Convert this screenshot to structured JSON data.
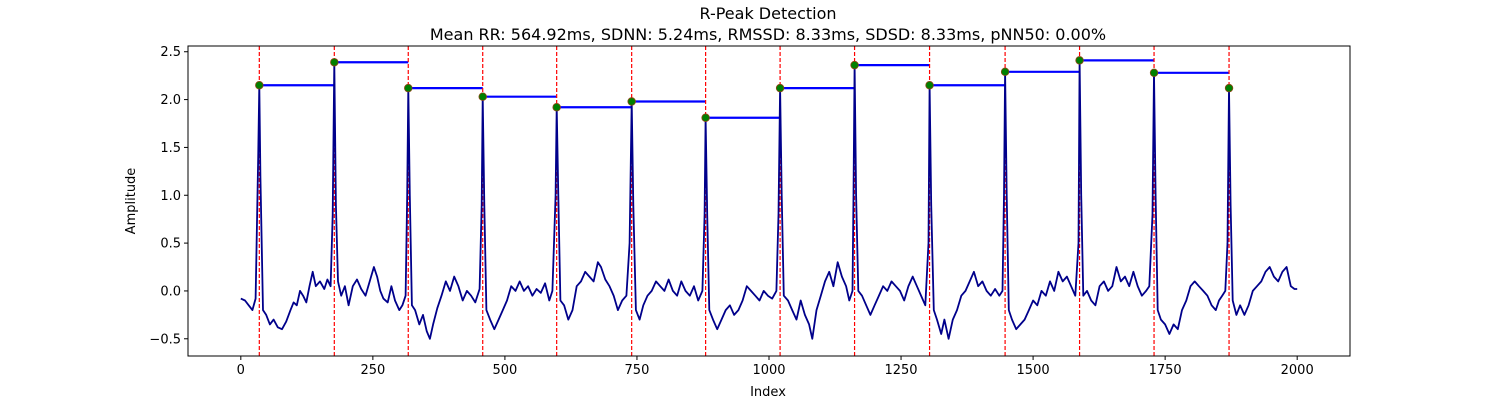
{
  "chart_data": {
    "type": "line",
    "title": "R-Peak Detection",
    "subtitle": "Mean RR: 564.92ms, SDNN: 5.24ms, RMSSD: 8.33ms, SDSD: 8.33ms, pNN50: 0.00%",
    "xlabel": "Index",
    "ylabel": "Amplitude",
    "xlim": [
      -100,
      2100
    ],
    "ylim": [
      -0.68,
      2.56
    ],
    "xticks": [
      0,
      250,
      500,
      750,
      1000,
      1250,
      1500,
      1750,
      2000
    ],
    "yticks": [
      -0.5,
      0.0,
      0.5,
      1.0,
      1.5,
      2.0,
      2.5
    ],
    "xtick_labels": [
      "0",
      "250",
      "500",
      "750",
      "1000",
      "1250",
      "1500",
      "1750",
      "2000"
    ],
    "ytick_labels": [
      "−0.5",
      "0.0",
      "0.5",
      "1.0",
      "1.5",
      "2.0",
      "2.5"
    ],
    "grid": false,
    "signal_length": 2000,
    "r_peaks": [
      {
        "index": 35,
        "amplitude": 2.15
      },
      {
        "index": 177,
        "amplitude": 2.39
      },
      {
        "index": 317,
        "amplitude": 2.12
      },
      {
        "index": 458,
        "amplitude": 2.03
      },
      {
        "index": 598,
        "amplitude": 1.92
      },
      {
        "index": 740,
        "amplitude": 1.98
      },
      {
        "index": 880,
        "amplitude": 1.81
      },
      {
        "index": 1021,
        "amplitude": 2.12
      },
      {
        "index": 1162,
        "amplitude": 2.36
      },
      {
        "index": 1304,
        "amplitude": 2.15
      },
      {
        "index": 1447,
        "amplitude": 2.29
      },
      {
        "index": 1588,
        "amplitude": 2.41
      },
      {
        "index": 1729,
        "amplitude": 2.28
      },
      {
        "index": 1871,
        "amplitude": 2.12
      }
    ],
    "signal_trace": [
      [
        0,
        -0.08
      ],
      [
        8,
        -0.1
      ],
      [
        15,
        -0.15
      ],
      [
        22,
        -0.2
      ],
      [
        28,
        -0.08
      ],
      [
        33,
        1.4
      ],
      [
        35,
        2.15
      ],
      [
        37,
        1.2
      ],
      [
        42,
        -0.2
      ],
      [
        48,
        -0.25
      ],
      [
        55,
        -0.35
      ],
      [
        62,
        -0.3
      ],
      [
        70,
        -0.38
      ],
      [
        78,
        -0.4
      ],
      [
        86,
        -0.32
      ],
      [
        94,
        -0.2
      ],
      [
        100,
        -0.12
      ],
      [
        106,
        -0.15
      ],
      [
        112,
        0.0
      ],
      [
        118,
        -0.05
      ],
      [
        124,
        -0.12
      ],
      [
        130,
        0.05
      ],
      [
        136,
        0.2
      ],
      [
        142,
        0.05
      ],
      [
        150,
        0.1
      ],
      [
        158,
        0.02
      ],
      [
        164,
        0.12
      ],
      [
        170,
        0.05
      ],
      [
        174,
        0.8
      ],
      [
        177,
        2.39
      ],
      [
        180,
        0.9
      ],
      [
        184,
        0.1
      ],
      [
        190,
        -0.05
      ],
      [
        197,
        0.05
      ],
      [
        204,
        -0.15
      ],
      [
        212,
        0.05
      ],
      [
        220,
        0.12
      ],
      [
        228,
        0.02
      ],
      [
        236,
        -0.05
      ],
      [
        244,
        0.1
      ],
      [
        252,
        0.25
      ],
      [
        258,
        0.15
      ],
      [
        264,
        0.0
      ],
      [
        270,
        -0.08
      ],
      [
        278,
        -0.12
      ],
      [
        285,
        0.05
      ],
      [
        292,
        -0.1
      ],
      [
        300,
        -0.2
      ],
      [
        306,
        -0.15
      ],
      [
        312,
        -0.05
      ],
      [
        315,
        1.0
      ],
      [
        317,
        2.12
      ],
      [
        320,
        1.0
      ],
      [
        324,
        -0.15
      ],
      [
        330,
        -0.2
      ],
      [
        338,
        -0.35
      ],
      [
        345,
        -0.25
      ],
      [
        352,
        -0.42
      ],
      [
        358,
        -0.5
      ],
      [
        364,
        -0.35
      ],
      [
        372,
        -0.18
      ],
      [
        380,
        -0.05
      ],
      [
        388,
        0.1
      ],
      [
        396,
        0.0
      ],
      [
        404,
        0.15
      ],
      [
        412,
        0.05
      ],
      [
        420,
        -0.1
      ],
      [
        428,
        0.0
      ],
      [
        436,
        -0.05
      ],
      [
        444,
        -0.12
      ],
      [
        452,
        0.02
      ],
      [
        456,
        0.9
      ],
      [
        458,
        2.03
      ],
      [
        461,
        0.9
      ],
      [
        465,
        -0.2
      ],
      [
        472,
        -0.3
      ],
      [
        480,
        -0.4
      ],
      [
        488,
        -0.3
      ],
      [
        496,
        -0.2
      ],
      [
        504,
        -0.1
      ],
      [
        512,
        0.05
      ],
      [
        520,
        0.0
      ],
      [
        528,
        0.1
      ],
      [
        536,
        0.0
      ],
      [
        544,
        0.05
      ],
      [
        552,
        -0.05
      ],
      [
        560,
        0.02
      ],
      [
        568,
        -0.02
      ],
      [
        576,
        0.08
      ],
      [
        584,
        -0.1
      ],
      [
        590,
        0.0
      ],
      [
        596,
        1.0
      ],
      [
        598,
        1.92
      ],
      [
        601,
        1.0
      ],
      [
        605,
        -0.1
      ],
      [
        612,
        -0.15
      ],
      [
        620,
        -0.3
      ],
      [
        628,
        -0.2
      ],
      [
        636,
        0.05
      ],
      [
        644,
        0.1
      ],
      [
        652,
        0.2
      ],
      [
        660,
        0.15
      ],
      [
        668,
        0.1
      ],
      [
        676,
        0.3
      ],
      [
        682,
        0.25
      ],
      [
        690,
        0.12
      ],
      [
        698,
        0.05
      ],
      [
        706,
        -0.05
      ],
      [
        714,
        -0.2
      ],
      [
        722,
        -0.1
      ],
      [
        730,
        -0.05
      ],
      [
        736,
        0.5
      ],
      [
        740,
        1.98
      ],
      [
        743,
        0.9
      ],
      [
        748,
        -0.2
      ],
      [
        755,
        -0.3
      ],
      [
        762,
        -0.15
      ],
      [
        770,
        -0.05
      ],
      [
        778,
        0.0
      ],
      [
        786,
        0.1
      ],
      [
        794,
        0.05
      ],
      [
        802,
        0.0
      ],
      [
        810,
        0.12
      ],
      [
        818,
        0.0
      ],
      [
        826,
        -0.05
      ],
      [
        834,
        0.1
      ],
      [
        842,
        0.0
      ],
      [
        850,
        -0.05
      ],
      [
        858,
        0.05
      ],
      [
        866,
        -0.1
      ],
      [
        874,
        0.0
      ],
      [
        878,
        0.8
      ],
      [
        880,
        1.81
      ],
      [
        883,
        0.8
      ],
      [
        887,
        -0.2
      ],
      [
        894,
        -0.3
      ],
      [
        902,
        -0.4
      ],
      [
        910,
        -0.3
      ],
      [
        918,
        -0.2
      ],
      [
        926,
        -0.15
      ],
      [
        934,
        -0.25
      ],
      [
        942,
        -0.2
      ],
      [
        950,
        -0.1
      ],
      [
        958,
        0.05
      ],
      [
        966,
        0.0
      ],
      [
        974,
        -0.05
      ],
      [
        982,
        -0.1
      ],
      [
        990,
        0.0
      ],
      [
        998,
        -0.05
      ],
      [
        1006,
        -0.08
      ],
      [
        1014,
        0.0
      ],
      [
        1018,
        0.8
      ],
      [
        1021,
        2.12
      ],
      [
        1024,
        1.0
      ],
      [
        1028,
        -0.05
      ],
      [
        1036,
        -0.1
      ],
      [
        1044,
        -0.2
      ],
      [
        1052,
        -0.3
      ],
      [
        1060,
        -0.1
      ],
      [
        1068,
        -0.25
      ],
      [
        1076,
        -0.35
      ],
      [
        1082,
        -0.5
      ],
      [
        1090,
        -0.2
      ],
      [
        1098,
        -0.05
      ],
      [
        1106,
        0.1
      ],
      [
        1114,
        0.2
      ],
      [
        1122,
        0.05
      ],
      [
        1130,
        0.3
      ],
      [
        1138,
        0.15
      ],
      [
        1146,
        0.05
      ],
      [
        1152,
        -0.1
      ],
      [
        1158,
        0.0
      ],
      [
        1160,
        1.0
      ],
      [
        1162,
        2.36
      ],
      [
        1165,
        1.0
      ],
      [
        1169,
        0.0
      ],
      [
        1176,
        -0.05
      ],
      [
        1184,
        -0.15
      ],
      [
        1192,
        -0.25
      ],
      [
        1200,
        -0.15
      ],
      [
        1208,
        -0.05
      ],
      [
        1216,
        0.05
      ],
      [
        1224,
        0.0
      ],
      [
        1232,
        0.1
      ],
      [
        1240,
        0.05
      ],
      [
        1248,
        0.0
      ],
      [
        1256,
        -0.1
      ],
      [
        1264,
        0.05
      ],
      [
        1272,
        0.15
      ],
      [
        1280,
        0.05
      ],
      [
        1288,
        -0.05
      ],
      [
        1296,
        -0.15
      ],
      [
        1302,
        0.5
      ],
      [
        1304,
        2.15
      ],
      [
        1307,
        0.9
      ],
      [
        1312,
        -0.2
      ],
      [
        1318,
        -0.3
      ],
      [
        1326,
        -0.45
      ],
      [
        1332,
        -0.3
      ],
      [
        1340,
        -0.5
      ],
      [
        1348,
        -0.3
      ],
      [
        1356,
        -0.2
      ],
      [
        1364,
        -0.05
      ],
      [
        1372,
        0.0
      ],
      [
        1380,
        0.1
      ],
      [
        1388,
        0.2
      ],
      [
        1396,
        0.05
      ],
      [
        1404,
        0.1
      ],
      [
        1412,
        0.0
      ],
      [
        1420,
        -0.05
      ],
      [
        1428,
        0.02
      ],
      [
        1436,
        -0.05
      ],
      [
        1442,
        0.0
      ],
      [
        1445,
        1.0
      ],
      [
        1447,
        2.29
      ],
      [
        1450,
        1.0
      ],
      [
        1454,
        -0.2
      ],
      [
        1460,
        -0.3
      ],
      [
        1468,
        -0.4
      ],
      [
        1476,
        -0.35
      ],
      [
        1484,
        -0.3
      ],
      [
        1492,
        -0.2
      ],
      [
        1500,
        -0.1
      ],
      [
        1508,
        -0.15
      ],
      [
        1516,
        0.0
      ],
      [
        1524,
        -0.05
      ],
      [
        1532,
        0.1
      ],
      [
        1540,
        0.0
      ],
      [
        1548,
        0.2
      ],
      [
        1556,
        0.1
      ],
      [
        1564,
        0.15
      ],
      [
        1572,
        0.05
      ],
      [
        1580,
        -0.05
      ],
      [
        1586,
        0.5
      ],
      [
        1588,
        2.41
      ],
      [
        1591,
        1.0
      ],
      [
        1595,
        -0.05
      ],
      [
        1602,
        0.0
      ],
      [
        1610,
        -0.1
      ],
      [
        1618,
        -0.15
      ],
      [
        1626,
        0.05
      ],
      [
        1634,
        0.1
      ],
      [
        1642,
        0.0
      ],
      [
        1650,
        0.05
      ],
      [
        1658,
        0.25
      ],
      [
        1666,
        0.1
      ],
      [
        1674,
        0.15
      ],
      [
        1682,
        0.05
      ],
      [
        1690,
        0.2
      ],
      [
        1698,
        0.05
      ],
      [
        1706,
        -0.05
      ],
      [
        1714,
        0.0
      ],
      [
        1720,
        0.05
      ],
      [
        1726,
        0.8
      ],
      [
        1729,
        2.28
      ],
      [
        1732,
        1.0
      ],
      [
        1736,
        -0.2
      ],
      [
        1742,
        -0.3
      ],
      [
        1750,
        -0.35
      ],
      [
        1758,
        -0.45
      ],
      [
        1766,
        -0.35
      ],
      [
        1774,
        -0.4
      ],
      [
        1782,
        -0.2
      ],
      [
        1790,
        -0.1
      ],
      [
        1798,
        0.05
      ],
      [
        1806,
        0.1
      ],
      [
        1814,
        0.05
      ],
      [
        1822,
        0.0
      ],
      [
        1830,
        -0.05
      ],
      [
        1838,
        -0.15
      ],
      [
        1846,
        -0.2
      ],
      [
        1852,
        -0.1
      ],
      [
        1858,
        -0.05
      ],
      [
        1864,
        0.0
      ],
      [
        1868,
        0.5
      ],
      [
        1871,
        2.12
      ],
      [
        1874,
        0.9
      ],
      [
        1878,
        -0.1
      ],
      [
        1885,
        -0.25
      ],
      [
        1892,
        -0.15
      ],
      [
        1900,
        -0.25
      ],
      [
        1908,
        -0.15
      ],
      [
        1916,
        0.0
      ],
      [
        1924,
        0.05
      ],
      [
        1932,
        0.1
      ],
      [
        1940,
        0.2
      ],
      [
        1948,
        0.25
      ],
      [
        1956,
        0.15
      ],
      [
        1964,
        0.1
      ],
      [
        1972,
        0.2
      ],
      [
        1980,
        0.25
      ],
      [
        1988,
        0.05
      ],
      [
        1995,
        0.02
      ],
      [
        2000,
        0.02
      ]
    ],
    "colors": {
      "signal": "#00008B",
      "rr_interval": "#0000FF",
      "peak_line": "#FF0000",
      "peak_marker": "#008000",
      "axes": "#000000",
      "background": "#FFFFFF"
    }
  }
}
